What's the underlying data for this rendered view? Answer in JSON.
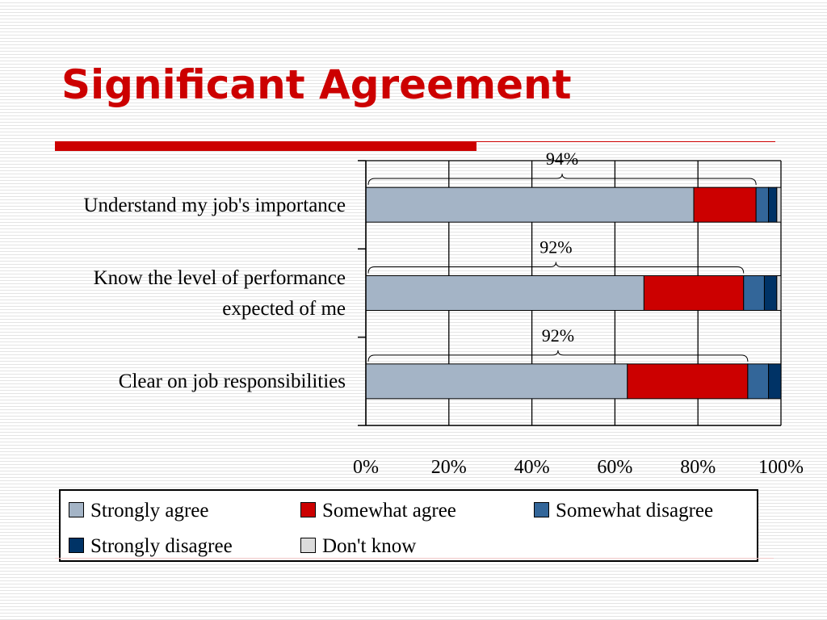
{
  "slide": {
    "title": "Significant Agreement"
  },
  "chart_data": {
    "type": "bar",
    "orientation": "horizontal",
    "stacked": true,
    "categories": [
      "Understand my job's importance",
      "Know the level of performance expected of me",
      "Clear on job responsibilities"
    ],
    "category_lines": [
      [
        "Understand my job's importance"
      ],
      [
        "Know the level of performance",
        "expected of me"
      ],
      [
        "Clear on job responsibilities"
      ]
    ],
    "series": [
      {
        "name": "Strongly agree",
        "color": "#a4b4c6",
        "values": [
          79,
          67,
          63
        ]
      },
      {
        "name": "Somewhat agree",
        "color": "#cc0000",
        "values": [
          15,
          24,
          29
        ]
      },
      {
        "name": "Somewhat disagree",
        "color": "#336699",
        "values": [
          3,
          5,
          5
        ]
      },
      {
        "name": "Strongly disagree",
        "color": "#003366",
        "values": [
          2,
          3,
          3
        ]
      },
      {
        "name": "Don't know",
        "color": "#dcdcdc",
        "values": [
          1,
          1,
          0
        ]
      }
    ],
    "annotations": [
      "94%",
      "92%",
      "92%"
    ],
    "xaxis": {
      "range": [
        0,
        100
      ],
      "ticks": [
        "0%",
        "20%",
        "40%",
        "60%",
        "80%",
        "100%"
      ]
    },
    "grid": true,
    "legend_position": "bottom"
  }
}
